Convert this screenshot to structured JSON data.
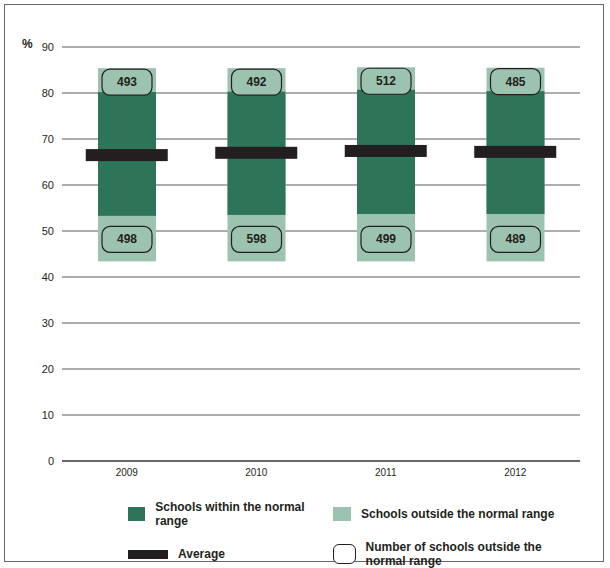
{
  "chart_data": {
    "type": "bar",
    "categories": [
      "2009",
      "2010",
      "2011",
      "2012"
    ],
    "y_label": "%",
    "ylim": [
      0,
      90
    ],
    "yticks": [
      0,
      10,
      20,
      30,
      40,
      50,
      60,
      70,
      80,
      90
    ],
    "grid": true,
    "series": [
      {
        "name": "Schools within the normal range",
        "color": "#2d7459",
        "values": [
          [
            53.3,
            80.2
          ],
          [
            53.5,
            80.3
          ],
          [
            53.7,
            80.7
          ],
          [
            53.7,
            80.4
          ]
        ]
      },
      {
        "name": "Schools outside the normal range",
        "color": "#9cc3af",
        "values": [
          [
            43.4,
            85.4
          ],
          [
            43.4,
            85.4
          ],
          [
            43.4,
            85.6
          ],
          [
            43.4,
            85.5
          ]
        ]
      },
      {
        "name": "Average",
        "type": "line",
        "color": "#231f20",
        "values": [
          66.5,
          67.0,
          67.4,
          67.2
        ]
      }
    ],
    "outside_counts": {
      "name": "Number of schools outside the normal range",
      "above": [
        493,
        492,
        512,
        485
      ],
      "below": [
        498,
        598,
        499,
        489
      ]
    }
  }
}
